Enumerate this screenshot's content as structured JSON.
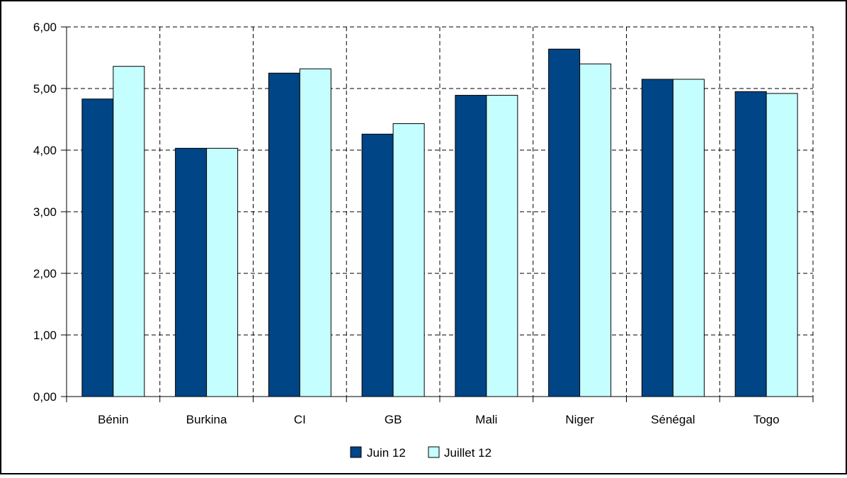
{
  "chart_data": {
    "type": "bar",
    "title": "",
    "xlabel": "",
    "ylabel": "",
    "categories": [
      "Bénin",
      "Burkina",
      "CI",
      "GB",
      "Mali",
      "Niger",
      "Sénégal",
      "Togo"
    ],
    "series": [
      {
        "name": "Juin 12",
        "color": "#004586",
        "values": [
          4.83,
          4.03,
          5.25,
          4.26,
          4.89,
          5.64,
          5.15,
          4.95
        ]
      },
      {
        "name": "Juillet 12",
        "color": "#c5fefe",
        "values": [
          5.36,
          4.03,
          5.32,
          4.43,
          4.89,
          5.4,
          5.15,
          4.92
        ]
      }
    ],
    "ylim": [
      0,
      6
    ],
    "yticks": [
      "0,00",
      "1,00",
      "2,00",
      "3,00",
      "4,00",
      "5,00",
      "6,00"
    ],
    "grid": true,
    "grid_style": "dashed",
    "legend_position": "bottom-center",
    "bar_outline_color": "#000000"
  }
}
